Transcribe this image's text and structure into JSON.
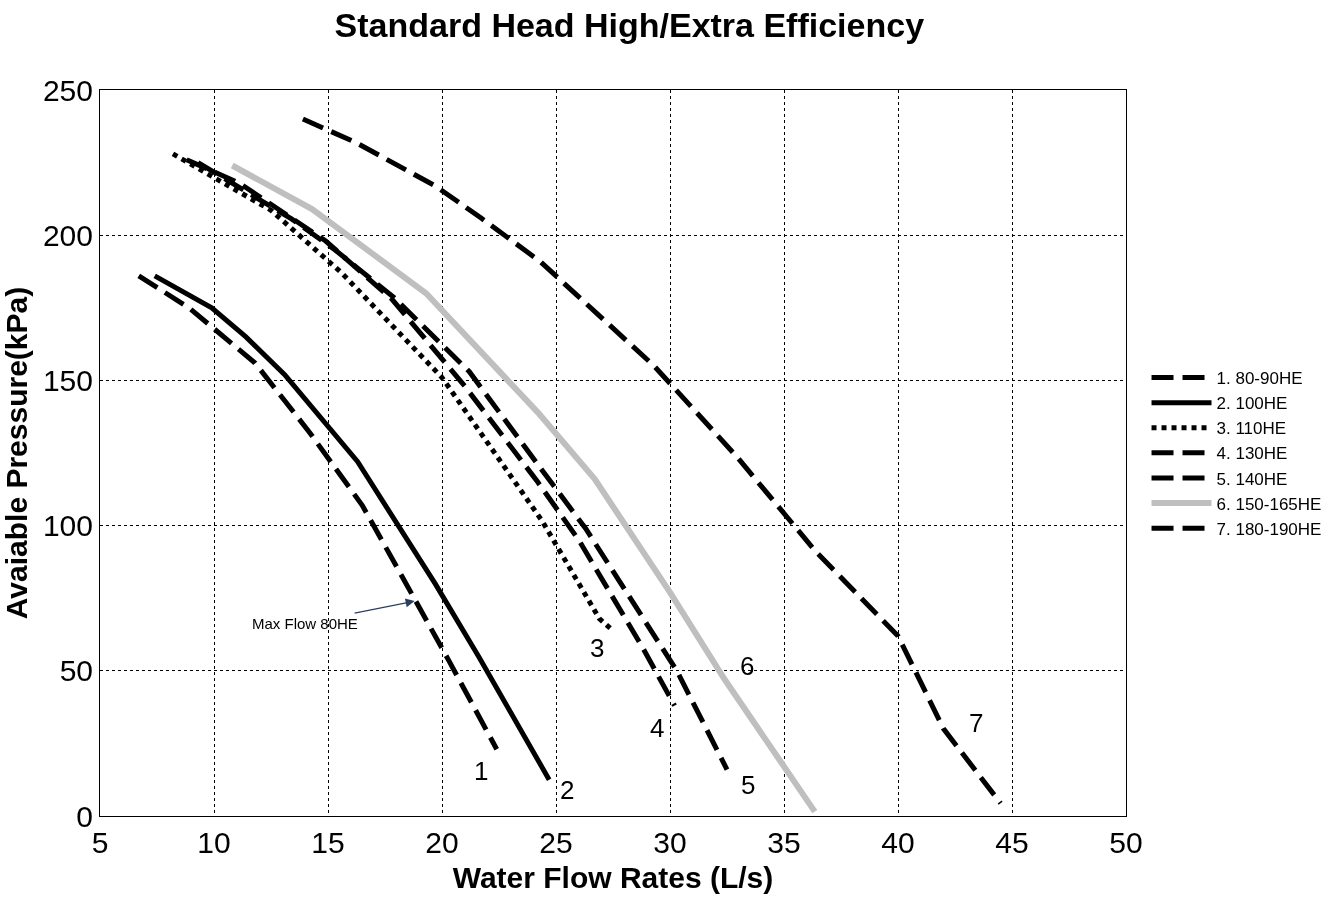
{
  "chart_data": {
    "type": "line",
    "title": "Standard Head High/Extra Efficiency",
    "xlabel": "Water Flow Rates (L/s)",
    "ylabel": "Avaiable Pressure(kPa)",
    "xlim": [
      5,
      50
    ],
    "xticks": [
      5,
      10,
      15,
      20,
      25,
      30,
      35,
      40,
      45,
      50
    ],
    "ylim": [
      0,
      250
    ],
    "yticks": [
      0,
      50,
      100,
      150,
      200,
      250
    ],
    "grid": true,
    "legend": "right",
    "marker": "none",
    "series": [
      {
        "name": "1. 80-90HE",
        "color": "#000000",
        "line_style": "dashed",
        "x": [
          6.7,
          8.9,
          11.8,
          14.2,
          16.5,
          18.0,
          20.3,
          22.4
        ],
        "values": [
          186,
          175,
          156,
          132,
          107,
          86,
          53.5,
          23
        ]
      },
      {
        "name": "2. 100HE",
        "color": "#000000",
        "line_style": "solid",
        "x": [
          7.4,
          9.9,
          11.4,
          13.1,
          16.3,
          19.7,
          21.6,
          24.7
        ],
        "values": [
          186,
          175,
          165,
          152,
          122,
          80,
          55,
          12.5
        ]
      },
      {
        "name": "3. 110HE",
        "color": "#000000",
        "line_style": "dotted",
        "x": [
          8.2,
          12.5,
          15.6,
          20.0,
          24.4,
          26.9,
          27.4
        ],
        "values": [
          228,
          208.6,
          187,
          151,
          101.5,
          68,
          64.5
        ]
      },
      {
        "name": "4. 130HE",
        "color": "#000000",
        "line_style": "dashed",
        "x": [
          8.8,
          11.1,
          14.9,
          17.8,
          21.0,
          24.2,
          26.0,
          28.8,
          30.2
        ],
        "values": [
          226,
          218,
          198,
          178,
          148,
          115,
          95,
          58,
          38
        ]
      },
      {
        "name": "5. 140HE",
        "color": "#000000",
        "line_style": "dashed",
        "x": [
          9.3,
          13.4,
          15.3,
          17.9,
          21.2,
          24.3,
          26.3,
          30.3,
          32.5
        ],
        "values": [
          225,
          205.6,
          195,
          178.5,
          153,
          120,
          99,
          50,
          16
        ]
      },
      {
        "name": "6. 150-165HE",
        "color": "#bfbfbf",
        "line_style": "solid",
        "x": [
          10.8,
          14.3,
          19.3,
          24.2,
          26.7,
          30.0,
          32.4,
          36.35
        ],
        "values": [
          224,
          209,
          180,
          139,
          116,
          77,
          47,
          1.5
        ]
      },
      {
        "name": "7. 180-190HE",
        "color": "#000000",
        "line_style": "dashed",
        "x": [
          13.9,
          16.2,
          19.7,
          21.7,
          24.3,
          26.8,
          29.3,
          32.9,
          36.4,
          40.0,
          42.0,
          44.5
        ],
        "values": [
          240,
          232,
          217,
          206,
          191,
          173,
          155,
          124,
          91,
          62,
          30,
          4.4
        ]
      }
    ],
    "annotations": [
      {
        "text": "Max Flow 80HE",
        "x": 18.8,
        "y": 74
      },
      "1",
      "2",
      "3",
      "4",
      "5",
      "6",
      "7"
    ]
  }
}
